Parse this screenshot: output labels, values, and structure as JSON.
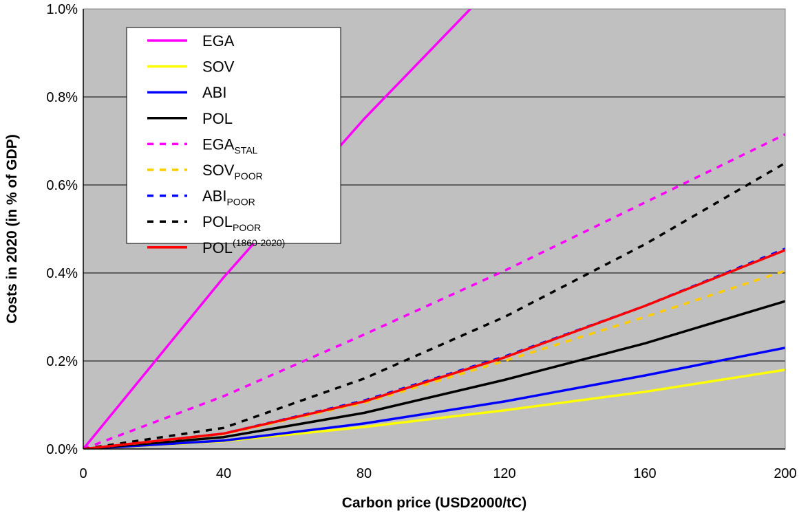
{
  "chart_data": {
    "type": "line",
    "xlabel": "Carbon price (USD2000/tC)",
    "ylabel": "Costs in 2020 (in % of GDP)",
    "xlim": [
      0,
      200
    ],
    "ylim": [
      0,
      1.0
    ],
    "x_ticks": [
      "0",
      "40",
      "80",
      "120",
      "160",
      "200"
    ],
    "y_ticks": [
      "0.0%",
      "0.2%",
      "0.4%",
      "0.6%",
      "0.8%",
      "1.0%"
    ],
    "plot_background": "#c0c0c0",
    "grid": "horizontal",
    "legend_position": "top-left",
    "x": [
      0,
      40,
      80,
      120,
      160,
      200
    ],
    "series": [
      {
        "name": "EGA",
        "color": "#ff00ff",
        "dash": "solid",
        "values": [
          0,
          0.39,
          0.75,
          1.08,
          null,
          null
        ]
      },
      {
        "name": "SOV",
        "color": "#ffff00",
        "dash": "solid",
        "values": [
          0,
          0.018,
          0.05,
          0.088,
          0.13,
          0.18
        ]
      },
      {
        "name": "ABI",
        "color": "#0000ff",
        "dash": "solid",
        "values": [
          0,
          0.019,
          0.058,
          0.108,
          0.167,
          0.23
        ]
      },
      {
        "name": "POL",
        "color": "#000000",
        "dash": "solid",
        "values": [
          0,
          0.027,
          0.082,
          0.157,
          0.24,
          0.336
        ]
      },
      {
        "name": "EGA",
        "name_sub": "STAL",
        "color": "#ff00ff",
        "dash": "dash",
        "values": [
          0,
          0.12,
          0.26,
          0.405,
          0.56,
          0.715
        ]
      },
      {
        "name": "SOV",
        "name_sub": "POOR",
        "color": "#ffcc00",
        "dash": "dash",
        "values": [
          0,
          0.034,
          0.105,
          0.2,
          0.3,
          0.405
        ]
      },
      {
        "name": "ABI",
        "name_sub": "POOR",
        "color": "#0000ff",
        "dash": "dash",
        "values": [
          0,
          0.035,
          0.11,
          0.21,
          0.325,
          0.455
        ]
      },
      {
        "name": "POL",
        "name_sub": "POOR",
        "color": "#000000",
        "dash": "dash",
        "values": [
          0,
          0.048,
          0.16,
          0.3,
          0.465,
          0.65
        ]
      },
      {
        "name": "POL",
        "name_sup": "(1860-2020)",
        "color": "#ff0000",
        "dash": "solid",
        "values": [
          0,
          0.035,
          0.108,
          0.208,
          0.325,
          0.452
        ]
      }
    ]
  }
}
